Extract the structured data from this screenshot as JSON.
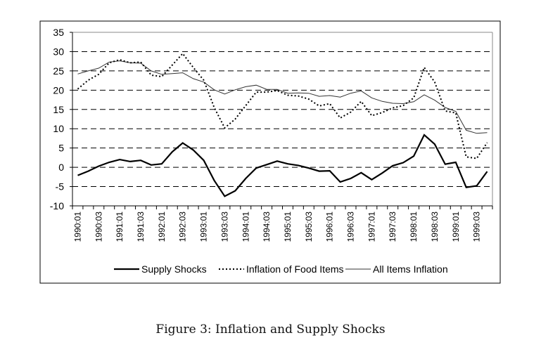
{
  "chart_data": {
    "type": "line",
    "title": "",
    "xlabel": "",
    "ylabel": "",
    "ylim": [
      -10,
      35
    ],
    "yticks": [
      35,
      30,
      25,
      20,
      15,
      10,
      5,
      0,
      -5,
      -10
    ],
    "grid": "horizontal dashed",
    "legend_position": "bottom",
    "x": [
      "1990:01",
      "1990:02",
      "1990:03",
      "1990:04",
      "1991:01",
      "1991:02",
      "1991:03",
      "1991:04",
      "1992:01",
      "1992:02",
      "1992:03",
      "1992:04",
      "1993:01",
      "1993:02",
      "1993:03",
      "1993:04",
      "1994:01",
      "1994:02",
      "1994:03",
      "1994:04",
      "1995:01",
      "1995:02",
      "1995:03",
      "1995:04",
      "1996:01",
      "1996:02",
      "1996:03",
      "1996:04",
      "1997:01",
      "1997:02",
      "1997:03",
      "1997:04",
      "1998:01",
      "1998:02",
      "1998:03",
      "1998:04",
      "1999:01",
      "1999:02",
      "1999:03",
      "1999:04"
    ],
    "xtick_labels": [
      "1990:01",
      "1990:03",
      "1991:01",
      "1991:03",
      "1992:01",
      "1992:03",
      "1993:01",
      "1993:03",
      "1994:01",
      "1994:03",
      "1995:01",
      "1995:03",
      "1996:01",
      "1996:03",
      "1997:01",
      "1997:03",
      "1998:01",
      "1998:03",
      "1999:01",
      "1999:03"
    ],
    "series": [
      {
        "name": "Supply Shocks",
        "style": "thick-solid",
        "values": [
          -2.1,
          -1.0,
          0.3,
          1.3,
          2.0,
          1.5,
          1.8,
          0.6,
          0.9,
          4.0,
          6.3,
          4.5,
          1.8,
          -3.4,
          -7.5,
          -6.1,
          -2.9,
          -0.2,
          0.7,
          1.6,
          0.9,
          0.5,
          -0.2,
          -1.0,
          -0.9,
          -3.8,
          -2.9,
          -1.4,
          -3.2,
          -1.5,
          0.4,
          1.2,
          2.9,
          8.4,
          6.0,
          0.8,
          1.3,
          -5.2,
          -4.8,
          -1.1
        ]
      },
      {
        "name": "Inflation of Food Items",
        "style": "dotted",
        "values": [
          20.3,
          22.6,
          24.1,
          27.1,
          27.9,
          27.1,
          27.3,
          23.9,
          23.5,
          26.5,
          29.5,
          25.9,
          22.6,
          15.5,
          10.2,
          12.5,
          16.0,
          19.5,
          19.5,
          19.9,
          18.7,
          18.5,
          17.7,
          15.9,
          16.5,
          12.8,
          14.3,
          17.1,
          13.4,
          14.2,
          15.4,
          16.0,
          18.0,
          25.9,
          22.1,
          14.6,
          14.1,
          2.7,
          2.3,
          6.4
        ]
      },
      {
        "name": "All Items Inflation",
        "style": "thin-solid",
        "values": [
          24.2,
          25.0,
          25.7,
          27.3,
          27.6,
          27.1,
          27.0,
          25.0,
          24.1,
          24.3,
          24.5,
          23.0,
          22.1,
          20.1,
          19.0,
          20.1,
          20.9,
          21.3,
          20.2,
          20.2,
          19.2,
          19.3,
          19.2,
          18.4,
          18.6,
          18.2,
          19.2,
          19.8,
          18.0,
          17.1,
          16.6,
          16.5,
          17.0,
          18.8,
          17.4,
          15.5,
          14.5,
          9.6,
          8.8,
          9.0
        ]
      }
    ]
  },
  "caption": "Figure 3: Inflation and Supply Shocks"
}
